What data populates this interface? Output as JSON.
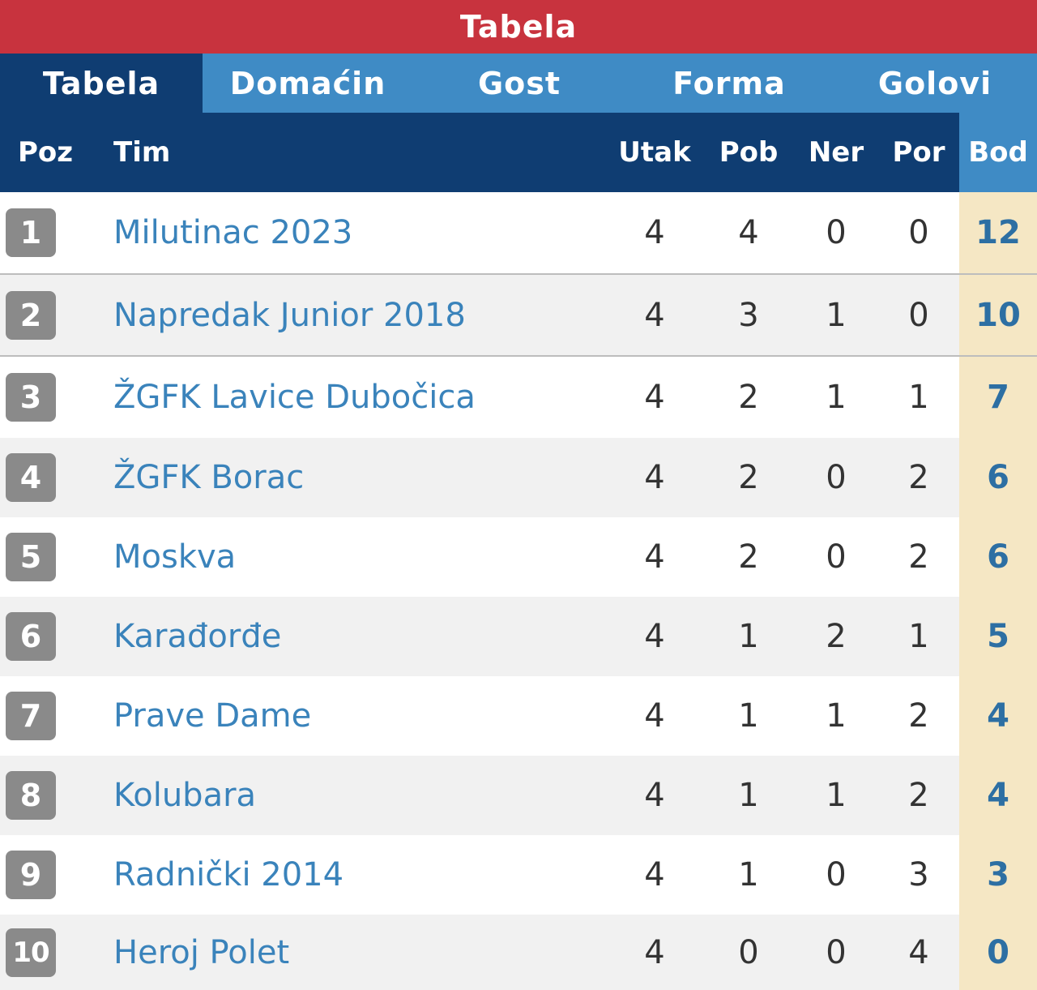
{
  "title": "Tabela",
  "tabs": [
    {
      "label": "Tabela",
      "active": true
    },
    {
      "label": "Domaćin",
      "active": false
    },
    {
      "label": "Gost",
      "active": false
    },
    {
      "label": "Forma",
      "active": false
    },
    {
      "label": "Golovi",
      "active": false
    }
  ],
  "columns": {
    "poz": "Poz",
    "tim": "Tim",
    "utak": "Utak",
    "pob": "Pob",
    "ner": "Ner",
    "por": "Por",
    "bod": "Bod"
  },
  "rows": [
    {
      "poz": "1",
      "tim": "Milutinac 2023",
      "utak": "4",
      "pob": "4",
      "ner": "0",
      "por": "0",
      "bod": "12"
    },
    {
      "poz": "2",
      "tim": "Napredak Junior 2018",
      "utak": "4",
      "pob": "3",
      "ner": "1",
      "por": "0",
      "bod": "10"
    },
    {
      "poz": "3",
      "tim": "ŽGFK Lavice Dubočica",
      "utak": "4",
      "pob": "2",
      "ner": "1",
      "por": "1",
      "bod": "7"
    },
    {
      "poz": "4",
      "tim": "ŽGFK Borac",
      "utak": "4",
      "pob": "2",
      "ner": "0",
      "por": "2",
      "bod": "6"
    },
    {
      "poz": "5",
      "tim": "Moskva",
      "utak": "4",
      "pob": "2",
      "ner": "0",
      "por": "2",
      "bod": "6"
    },
    {
      "poz": "6",
      "tim": "Karađorđe",
      "utak": "4",
      "pob": "1",
      "ner": "2",
      "por": "1",
      "bod": "5"
    },
    {
      "poz": "7",
      "tim": "Prave Dame",
      "utak": "4",
      "pob": "1",
      "ner": "1",
      "por": "2",
      "bod": "4"
    },
    {
      "poz": "8",
      "tim": "Kolubara",
      "utak": "4",
      "pob": "1",
      "ner": "1",
      "por": "2",
      "bod": "4"
    },
    {
      "poz": "9",
      "tim": "Radnički 2014",
      "utak": "4",
      "pob": "1",
      "ner": "0",
      "por": "3",
      "bod": "3"
    },
    {
      "poz": "10",
      "tim": "Heroj Polet",
      "utak": "4",
      "pob": "0",
      "ner": "0",
      "por": "4",
      "bod": "0"
    }
  ],
  "colors": {
    "title_bg": "#c8333e",
    "tab_bg": "#3f8bc5",
    "tab_active_bg": "#0f3d72",
    "header_bg": "#0f3d72",
    "points_bg": "#f5e7c4",
    "team_link": "#3a83bb",
    "position_badge": "#8a8a8a"
  }
}
